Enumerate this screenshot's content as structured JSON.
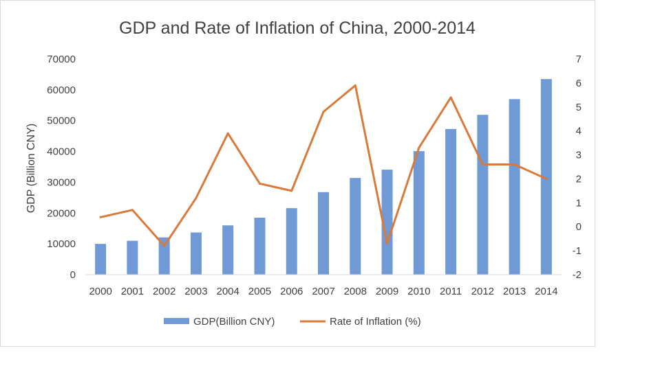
{
  "chart_data": {
    "type": "bar",
    "title": "GDP and Rate of Inflation of China, 2000-2014",
    "ylabel": "GDP (Billion CNY)",
    "y2label": "",
    "categories": [
      "2000",
      "2001",
      "2002",
      "2003",
      "2004",
      "2005",
      "2006",
      "2007",
      "2008",
      "2009",
      "2010",
      "2011",
      "2012",
      "2013",
      "2014"
    ],
    "ylim": [
      0,
      70000
    ],
    "yticks": [
      "0",
      "10000",
      "20000",
      "30000",
      "40000",
      "50000",
      "60000",
      "70000"
    ],
    "y2lim": [
      -2,
      7
    ],
    "y2ticks": [
      "-2",
      "-1",
      "0",
      "1",
      "2",
      "3",
      "4",
      "5",
      "6",
      "7"
    ],
    "grid": false,
    "legend_position": "bottom",
    "series": [
      {
        "name": "GDP(Billion CNY)",
        "type": "bar",
        "axis": "left",
        "color": "#6f9ad6",
        "values": [
          10000,
          11000,
          12100,
          13700,
          16000,
          18500,
          21600,
          26800,
          31400,
          34100,
          40100,
          47300,
          51900,
          57000,
          63500
        ]
      },
      {
        "name": "Rate of Inflation (%)",
        "type": "line",
        "axis": "right",
        "color": "#d9793a",
        "values": [
          0.4,
          0.7,
          -0.8,
          1.2,
          3.9,
          1.8,
          1.5,
          4.8,
          5.9,
          -0.7,
          3.3,
          5.4,
          2.6,
          2.6,
          2.0
        ]
      }
    ]
  }
}
